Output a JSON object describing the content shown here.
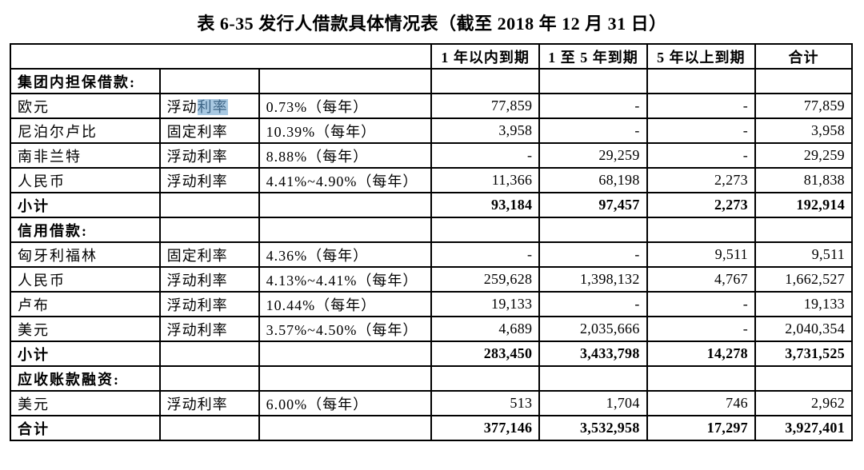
{
  "title": "表 6-35  发行人借款具体情况表（截至 2018 年 12 月 31 日）",
  "highlight": {
    "background_color": "#a9c9e2",
    "text_color": "#3d6485"
  },
  "table": {
    "header": {
      "spacer_colspan": 3,
      "columns": [
        "1 年以内到期",
        "1 至 5 年到期",
        "5 年以上到期",
        "合计"
      ]
    },
    "rows": [
      {
        "kind": "section",
        "bold": true,
        "cells": [
          "集团内担保借款:",
          "",
          "",
          "",
          "",
          "",
          ""
        ]
      },
      {
        "kind": "data",
        "bold": false,
        "cells": [
          "欧元",
          "浮动利率",
          "0.73%（每年）",
          "77,859",
          "-",
          "-",
          "77,859"
        ],
        "highlight": {
          "col": 1,
          "text": "利率"
        }
      },
      {
        "kind": "data",
        "bold": false,
        "cells": [
          "尼泊尔卢比",
          "固定利率",
          "10.39%（每年）",
          "3,958",
          "-",
          "-",
          "3,958"
        ]
      },
      {
        "kind": "data",
        "bold": false,
        "cells": [
          "南非兰特",
          "浮动利率",
          "8.88%（每年）",
          "-",
          "29,259",
          "-",
          "29,259"
        ]
      },
      {
        "kind": "data",
        "bold": false,
        "cells": [
          "人民币",
          "浮动利率",
          "4.41%~4.90%（每年）",
          "11,366",
          "68,198",
          "2,273",
          "81,838"
        ]
      },
      {
        "kind": "subtotal",
        "bold": true,
        "cells": [
          "小计",
          "",
          "",
          "93,184",
          "97,457",
          "2,273",
          "192,914"
        ]
      },
      {
        "kind": "section",
        "bold": true,
        "cells": [
          "信用借款:",
          "",
          "",
          "",
          "",
          "",
          ""
        ]
      },
      {
        "kind": "data",
        "bold": false,
        "cells": [
          "匈牙利福林",
          "固定利率",
          "4.36%（每年）",
          "-",
          "-",
          "9,511",
          "9,511"
        ]
      },
      {
        "kind": "data",
        "bold": false,
        "cells": [
          "人民币",
          "浮动利率",
          "4.13%~4.41%（每年）",
          "259,628",
          "1,398,132",
          "4,767",
          "1,662,527"
        ]
      },
      {
        "kind": "data",
        "bold": false,
        "cells": [
          "卢布",
          "浮动利率",
          "10.44%（每年）",
          "19,133",
          "-",
          "-",
          "19,133"
        ]
      },
      {
        "kind": "data",
        "bold": false,
        "cells": [
          "美元",
          "浮动利率",
          "3.57%~4.50%（每年）",
          "4,689",
          "2,035,666",
          "-",
          "2,040,354"
        ]
      },
      {
        "kind": "subtotal",
        "bold": true,
        "cells": [
          "小计",
          "",
          "",
          "283,450",
          "3,433,798",
          "14,278",
          "3,731,525"
        ]
      },
      {
        "kind": "section",
        "bold": true,
        "cells": [
          "应收账款融资:",
          "",
          "",
          "",
          "",
          "",
          ""
        ]
      },
      {
        "kind": "data",
        "bold": false,
        "cells": [
          "美元",
          "浮动利率",
          "6.00%（每年）",
          "513",
          "1,704",
          "746",
          "2,962"
        ]
      },
      {
        "kind": "total",
        "bold": true,
        "cells": [
          "合计",
          "",
          "",
          "377,146",
          "3,532,958",
          "17,297",
          "3,927,401"
        ]
      }
    ]
  }
}
